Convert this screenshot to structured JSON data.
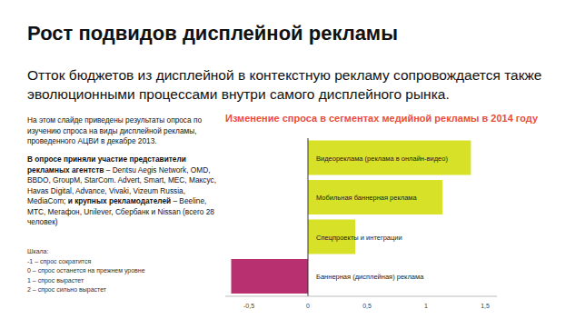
{
  "slide": {
    "title": "Рост подвидов дисплейной рекламы",
    "subtitle": "Отток бюджетов из дисплейной в контекстную рекламу сопровождается также эволюционными процессами внутри самого дисплейного рынка.",
    "intro": "На этом слайде приведены результаты опроса по изучению спроса на виды дисплейной рекламы, проведенного АЦВИ в декабре 2013.",
    "participants": [
      {
        "text": "В опросе приняли участие представители рекламных агентств",
        "bold": true
      },
      {
        "text": " – Dentsu Aegis Network, OMD, BBDO, GroupM, StarCom. Advert, Smart, MEC, Максус, Havas Digital, Advance, Vivaki, Vizeum Russia, MediaCom;",
        "bold": false
      },
      {
        "text": " и крупных рекламодателей",
        "bold": true
      },
      {
        "text": " – Beeline, МТС, Мегафон, Unilever, Сбербанк и Nissan (всего 28 человек)",
        "bold": false
      }
    ],
    "scale": {
      "title": "Шкала:",
      "items": [
        "-1 – спрос сократится",
        "0 – спрос останется на прежнем уровне",
        "1 – спрос вырастет",
        "2 – спрос сильно вырастет"
      ]
    }
  },
  "chart_data": {
    "type": "bar",
    "orientation": "horizontal",
    "title": "Изменение спроса в сегментах медийной рекламы в 2014 году",
    "categories": [
      "Видеореклама (реклама в онлайн-видео)",
      "Мобильная баннерная реклама",
      "Спецпроекты и интеграции",
      "Баннерная (дисплейная) реклама"
    ],
    "values": [
      1.38,
      1.14,
      0.4,
      -0.65
    ],
    "colors": [
      "#d6e128",
      "#d6e128",
      "#d6e128",
      "#b8306f"
    ],
    "xlim": [
      -0.7,
      1.6
    ],
    "xticks": [
      {
        "value": -0.5,
        "label": "-0,5"
      },
      {
        "value": 0,
        "label": "0"
      },
      {
        "value": 0.5,
        "label": "0,5"
      },
      {
        "value": 1,
        "label": "1"
      },
      {
        "value": 1.5,
        "label": "1,5"
      }
    ],
    "tick_labels": "x",
    "grid": false
  }
}
